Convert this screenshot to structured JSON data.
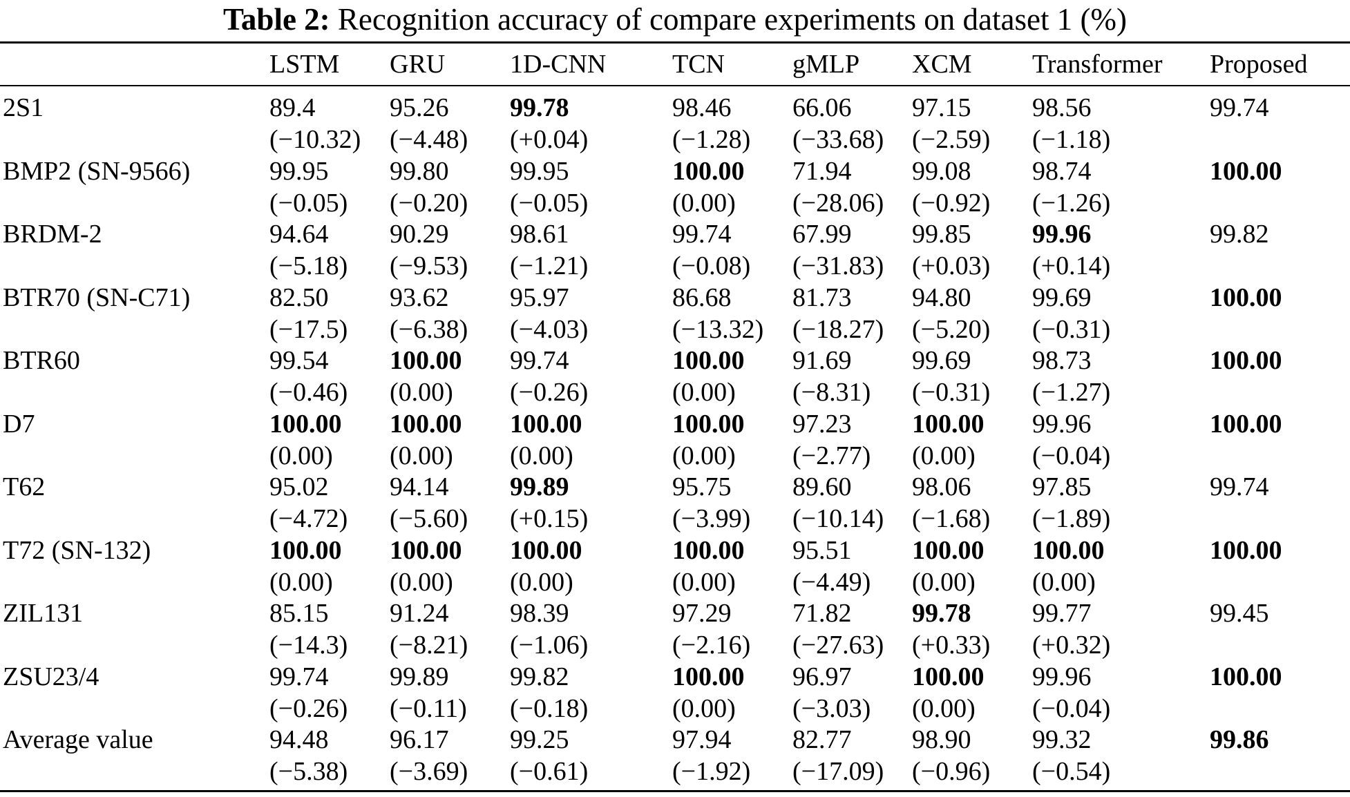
{
  "caption": {
    "label": "Table 2:",
    "text": "Recognition accuracy of compare experiments on dataset 1 (%)"
  },
  "columns": [
    "",
    "LSTM",
    "GRU",
    "1D-CNN",
    "TCN",
    "gMLP",
    "XCM",
    "Transformer",
    "Proposed"
  ],
  "rows": [
    {
      "name": "2S1",
      "values": [
        "89.4",
        "95.26",
        "99.78",
        "98.46",
        "66.06",
        "97.15",
        "98.56",
        "99.74"
      ],
      "diffs": [
        "(−10.32)",
        "(−4.48)",
        "(+0.04)",
        "(−1.28)",
        "(−33.68)",
        "(−2.59)",
        "(−1.18)",
        ""
      ],
      "bold": [
        false,
        false,
        true,
        false,
        false,
        false,
        false,
        false
      ]
    },
    {
      "name": "BMP2 (SN-9566)",
      "values": [
        "99.95",
        "99.80",
        "99.95",
        "100.00",
        "71.94",
        "99.08",
        "98.74",
        "100.00"
      ],
      "diffs": [
        "(−0.05)",
        "(−0.20)",
        "(−0.05)",
        "(0.00)",
        "(−28.06)",
        "(−0.92)",
        "(−1.26)",
        ""
      ],
      "bold": [
        false,
        false,
        false,
        true,
        false,
        false,
        false,
        true
      ]
    },
    {
      "name": "BRDM-2",
      "values": [
        "94.64",
        "90.29",
        "98.61",
        "99.74",
        "67.99",
        "99.85",
        "99.96",
        "99.82"
      ],
      "diffs": [
        "(−5.18)",
        "(−9.53)",
        "(−1.21)",
        "(−0.08)",
        "(−31.83)",
        "(+0.03)",
        "(+0.14)",
        ""
      ],
      "bold": [
        false,
        false,
        false,
        false,
        false,
        false,
        true,
        false
      ]
    },
    {
      "name": "BTR70 (SN-C71)",
      "values": [
        "82.50",
        "93.62",
        "95.97",
        "86.68",
        "81.73",
        "94.80",
        "99.69",
        "100.00"
      ],
      "diffs": [
        "(−17.5)",
        "(−6.38)",
        "(−4.03)",
        "(−13.32)",
        "(−18.27)",
        "(−5.20)",
        "(−0.31)",
        ""
      ],
      "bold": [
        false,
        false,
        false,
        false,
        false,
        false,
        false,
        true
      ]
    },
    {
      "name": "BTR60",
      "values": [
        "99.54",
        "100.00",
        "99.74",
        "100.00",
        "91.69",
        "99.69",
        "98.73",
        "100.00"
      ],
      "diffs": [
        "(−0.46)",
        "(0.00)",
        "(−0.26)",
        "(0.00)",
        "(−8.31)",
        "(−0.31)",
        "(−1.27)",
        ""
      ],
      "bold": [
        false,
        true,
        false,
        true,
        false,
        false,
        false,
        true
      ]
    },
    {
      "name": "D7",
      "values": [
        "100.00",
        "100.00",
        "100.00",
        "100.00",
        "97.23",
        "100.00",
        "99.96",
        "100.00"
      ],
      "diffs": [
        "(0.00)",
        "(0.00)",
        "(0.00)",
        "(0.00)",
        "(−2.77)",
        "(0.00)",
        "(−0.04)",
        ""
      ],
      "bold": [
        true,
        true,
        true,
        true,
        false,
        true,
        false,
        true
      ]
    },
    {
      "name": "T62",
      "values": [
        "95.02",
        "94.14",
        "99.89",
        "95.75",
        "89.60",
        "98.06",
        "97.85",
        "99.74"
      ],
      "diffs": [
        "(−4.72)",
        "(−5.60)",
        "(+0.15)",
        "(−3.99)",
        "(−10.14)",
        "(−1.68)",
        "(−1.89)",
        ""
      ],
      "bold": [
        false,
        false,
        true,
        false,
        false,
        false,
        false,
        false
      ]
    },
    {
      "name": "T72 (SN-132)",
      "values": [
        "100.00",
        "100.00",
        "100.00",
        "100.00",
        "95.51",
        "100.00",
        "100.00",
        "100.00"
      ],
      "diffs": [
        "(0.00)",
        "(0.00)",
        "(0.00)",
        "(0.00)",
        "(−4.49)",
        "(0.00)",
        "(0.00)",
        ""
      ],
      "bold": [
        true,
        true,
        true,
        true,
        false,
        true,
        true,
        true
      ]
    },
    {
      "name": "ZIL131",
      "values": [
        "85.15",
        "91.24",
        "98.39",
        "97.29",
        "71.82",
        "99.78",
        "99.77",
        "99.45"
      ],
      "diffs": [
        "(−14.3)",
        "(−8.21)",
        "(−1.06)",
        "(−2.16)",
        "(−27.63)",
        "(+0.33)",
        "(+0.32)",
        ""
      ],
      "bold": [
        false,
        false,
        false,
        false,
        false,
        true,
        false,
        false
      ]
    },
    {
      "name": "ZSU23/4",
      "values": [
        "99.74",
        "99.89",
        "99.82",
        "100.00",
        "96.97",
        "100.00",
        "99.96",
        "100.00"
      ],
      "diffs": [
        "(−0.26)",
        "(−0.11)",
        "(−0.18)",
        "(0.00)",
        "(−3.03)",
        "(0.00)",
        "(−0.04)",
        ""
      ],
      "bold": [
        false,
        false,
        false,
        true,
        false,
        true,
        false,
        true
      ]
    },
    {
      "name": "Average value",
      "values": [
        "94.48",
        "96.17",
        "99.25",
        "97.94",
        "82.77",
        "98.90",
        "99.32",
        "99.86"
      ],
      "diffs": [
        "(−5.38)",
        "(−3.69)",
        "(−0.61)",
        "(−1.92)",
        "(−17.09)",
        "(−0.96)",
        "(−0.54)",
        ""
      ],
      "bold": [
        false,
        false,
        false,
        false,
        false,
        false,
        false,
        true
      ]
    }
  ]
}
